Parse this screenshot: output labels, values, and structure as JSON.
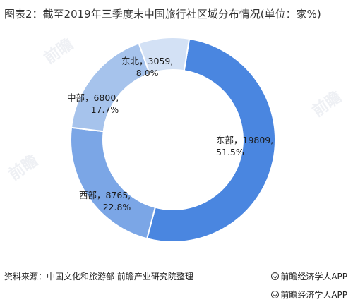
{
  "title": "图表2：截至2019年三季度末中国旅行社区域分布情况(单位：家%)",
  "source": "资料来源：中国文化和旅游部 前瞻产业研究院整理",
  "brand": "前瞻经济学人APP",
  "chart_data": {
    "type": "pie",
    "style": "donut",
    "title": "图表2：截至2019年三季度末中国旅行社区域分布情况(单位：家%)",
    "slices": [
      {
        "name": "东部",
        "value": 19809,
        "percent": "51.5%",
        "color": "#4a86e0"
      },
      {
        "name": "西部",
        "value": 8765,
        "percent": "22.8%",
        "color": "#7ba6e6"
      },
      {
        "name": "中部",
        "value": 6800,
        "percent": "17.7%",
        "color": "#a6c3ec"
      },
      {
        "name": "东北",
        "value": 3059,
        "percent": "8.0%",
        "color": "#d3e1f5"
      }
    ],
    "labels": {
      "东部": [
        "东部，19809,",
        "51.5%"
      ],
      "西部": [
        "西部，8765,",
        "22.8%"
      ],
      "中部": [
        "中部，6800,",
        "17.7%"
      ],
      "东北": [
        "东北，3059,",
        "8.0%"
      ]
    }
  }
}
